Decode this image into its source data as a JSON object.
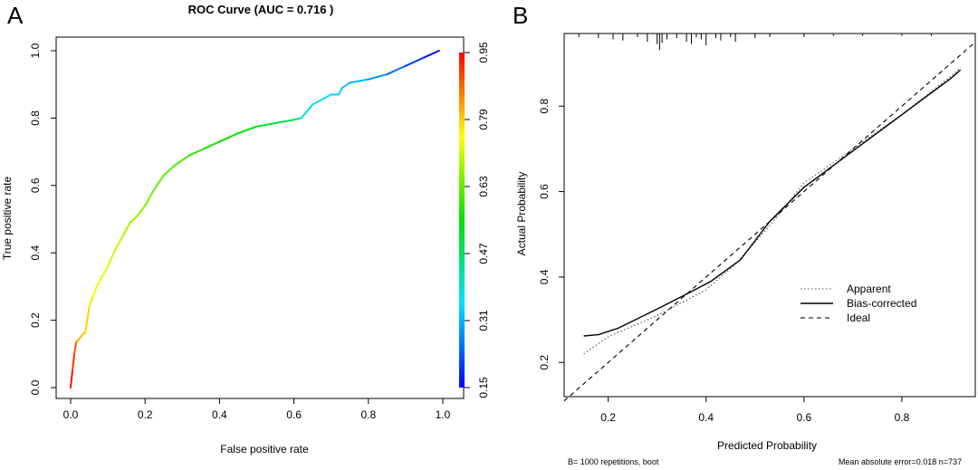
{
  "chart_data": [
    {
      "panel": "A",
      "type": "line",
      "title": "ROC Curve (AUC = 0.716 )",
      "xlabel": "False positive rate",
      "ylabel": "True positive rate",
      "xlim": [
        0,
        1
      ],
      "ylim": [
        0,
        1
      ],
      "xticks": [
        "0.0",
        "0.2",
        "0.4",
        "0.6",
        "0.8",
        "1.0"
      ],
      "yticks": [
        "0.0",
        "0.2",
        "0.4",
        "0.6",
        "0.8",
        "1.0"
      ],
      "grid": false,
      "colorbar": {
        "ticks": [
          "0.15",
          "0.31",
          "0.47",
          "0.63",
          "0.79",
          "0.95"
        ],
        "range": [
          0.15,
          0.95
        ],
        "colors": [
          "#0000ff",
          "#00e0ff",
          "#00e000",
          "#ffff00",
          "#ff0000"
        ]
      },
      "series": [
        {
          "x": [
            0.0,
            0.005,
            0.01,
            0.015,
            0.02,
            0.03,
            0.04,
            0.05,
            0.06,
            0.07,
            0.08,
            0.1,
            0.12,
            0.14,
            0.16,
            0.18,
            0.2,
            0.22,
            0.25,
            0.28,
            0.32,
            0.36,
            0.4,
            0.45,
            0.5,
            0.55,
            0.6,
            0.62,
            0.65,
            0.7,
            0.72,
            0.73,
            0.75,
            0.8,
            0.85,
            0.9,
            0.95,
            0.99
          ],
          "y": [
            0.0,
            0.05,
            0.1,
            0.135,
            0.14,
            0.155,
            0.165,
            0.24,
            0.27,
            0.3,
            0.32,
            0.36,
            0.41,
            0.45,
            0.49,
            0.51,
            0.54,
            0.58,
            0.63,
            0.66,
            0.69,
            0.71,
            0.73,
            0.755,
            0.775,
            0.785,
            0.795,
            0.8,
            0.84,
            0.87,
            0.87,
            0.89,
            0.905,
            0.915,
            0.93,
            0.955,
            0.98,
            1.0
          ],
          "cutoff": [
            0.95,
            0.93,
            0.9,
            0.87,
            0.82,
            0.8,
            0.79,
            0.78,
            0.76,
            0.75,
            0.74,
            0.72,
            0.71,
            0.69,
            0.68,
            0.67,
            0.66,
            0.64,
            0.63,
            0.62,
            0.6,
            0.58,
            0.56,
            0.55,
            0.53,
            0.5,
            0.47,
            0.42,
            0.36,
            0.35,
            0.34,
            0.33,
            0.32,
            0.3,
            0.27,
            0.22,
            0.18,
            0.15
          ]
        }
      ]
    },
    {
      "panel": "B",
      "type": "line",
      "xlabel": "Predicted Probability",
      "ylabel": "Actual Probability",
      "xlim": [
        0.11,
        0.95
      ],
      "ylim": [
        0.12,
        0.97
      ],
      "xticks": [
        "0.2",
        "0.4",
        "0.6",
        "0.8"
      ],
      "yticks": [
        "0.2",
        "0.4",
        "0.6",
        "0.8"
      ],
      "grid": false,
      "legend_position": "bottom-right",
      "series": [
        {
          "name": "Apparent",
          "style": "dotted",
          "x": [
            0.15,
            0.2,
            0.3,
            0.4,
            0.46,
            0.53,
            0.6,
            0.7,
            0.8,
            0.9,
            0.92
          ],
          "y": [
            0.22,
            0.26,
            0.31,
            0.37,
            0.43,
            0.52,
            0.62,
            0.7,
            0.78,
            0.87,
            0.89
          ]
        },
        {
          "name": "Bias-corrected",
          "style": "solid",
          "x": [
            0.15,
            0.18,
            0.22,
            0.3,
            0.36,
            0.41,
            0.47,
            0.53,
            0.6,
            0.7,
            0.8,
            0.9,
            0.92
          ],
          "y": [
            0.262,
            0.265,
            0.28,
            0.325,
            0.36,
            0.39,
            0.44,
            0.53,
            0.61,
            0.695,
            0.78,
            0.865,
            0.885
          ]
        },
        {
          "name": "Ideal",
          "style": "dashed",
          "x": [
            0.11,
            0.95
          ],
          "y": [
            0.11,
            0.95
          ]
        }
      ],
      "rug_x": [
        0.14,
        0.18,
        0.21,
        0.23,
        0.26,
        0.28,
        0.3,
        0.305,
        0.31,
        0.32,
        0.34,
        0.36,
        0.37,
        0.38,
        0.39,
        0.4,
        0.42,
        0.43,
        0.45,
        0.46,
        0.5,
        0.53,
        0.6,
        0.66,
        0.72,
        0.8,
        0.86
      ],
      "rug_heights": [
        3,
        4,
        5,
        6,
        3,
        7,
        9,
        14,
        8,
        5,
        4,
        7,
        9,
        3,
        5,
        10,
        4,
        6,
        3,
        7,
        4,
        3,
        3,
        2,
        2,
        2,
        2
      ],
      "footnote_left": "B= 1000 repetitions, boot",
      "footnote_right": "Mean absolute error=0.018 n=737"
    }
  ]
}
